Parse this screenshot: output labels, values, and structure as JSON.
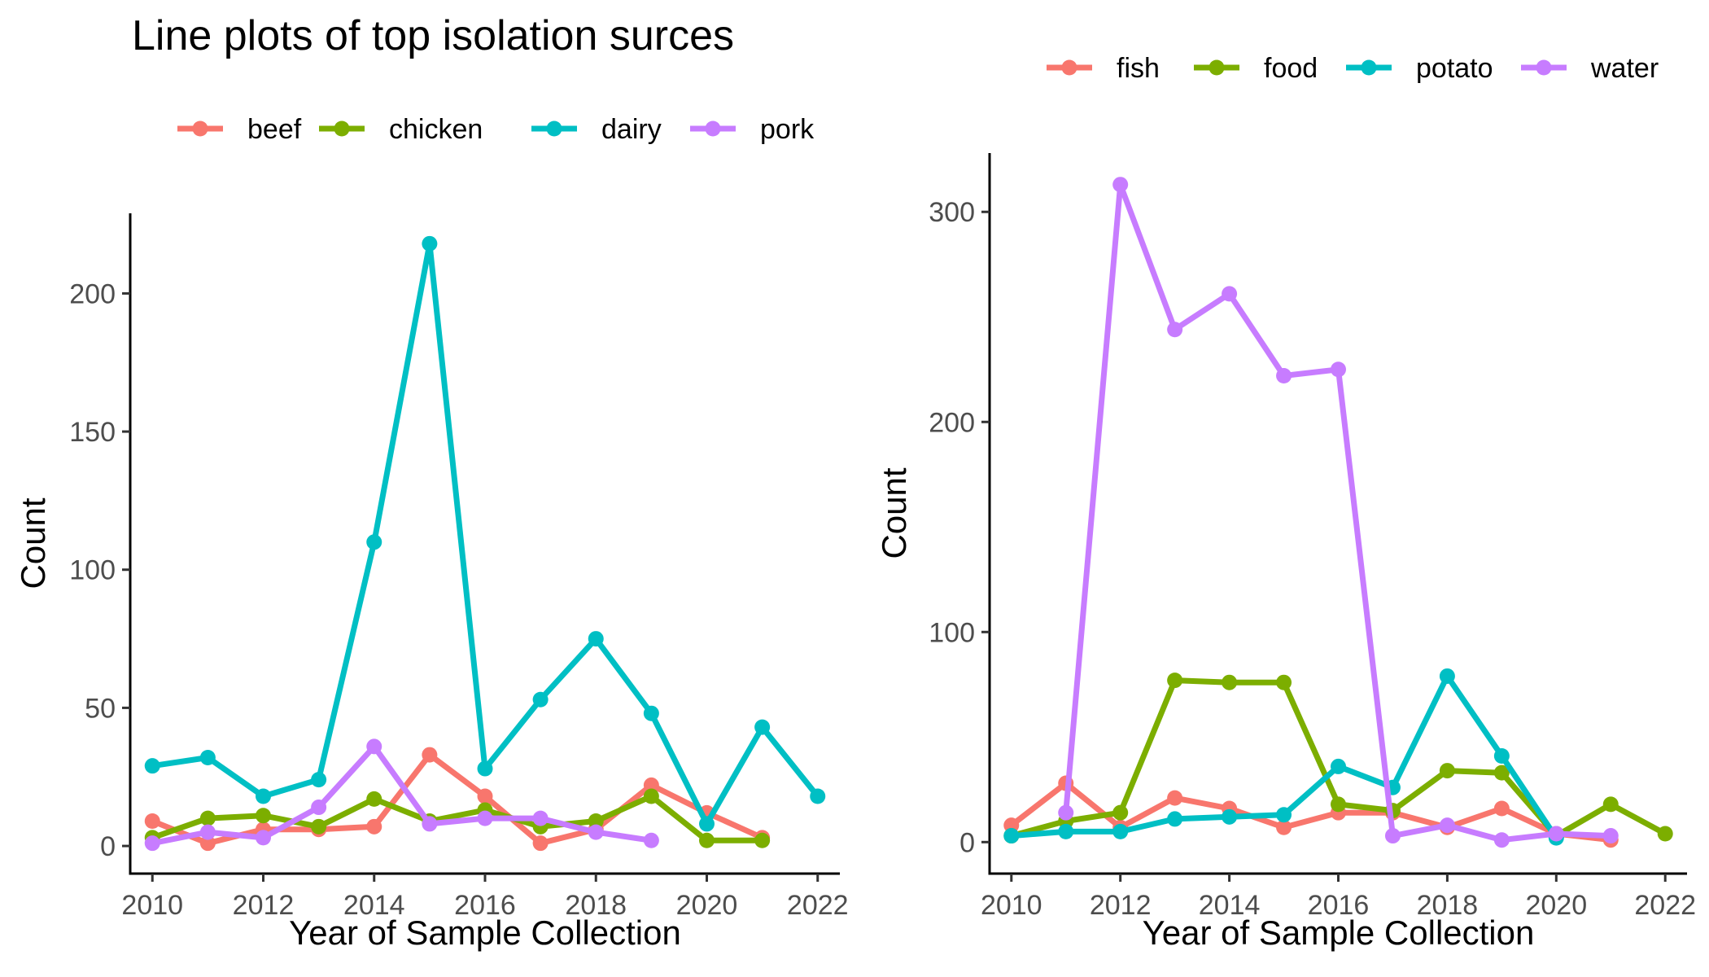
{
  "figure_title": "Line plots of top isolation surces",
  "colors": {
    "red": "#F8766D",
    "green": "#7CAE00",
    "cyan": "#00BFC4",
    "purple": "#C77CFF"
  },
  "chart_data": [
    {
      "type": "line",
      "title": "",
      "xlabel": "Year of Sample Collection",
      "ylabel": "Count",
      "xlim": [
        2009.6,
        2022.4
      ],
      "ylim": [
        -10,
        229
      ],
      "xticks": [
        2010,
        2012,
        2014,
        2016,
        2018,
        2020,
        2022
      ],
      "yticks": [
        0,
        50,
        100,
        150,
        200
      ],
      "grid": false,
      "legend_position": "top",
      "series": [
        {
          "name": "beef",
          "color": "#F8766D",
          "x": [
            2010,
            2011,
            2012,
            2013,
            2014,
            2015,
            2016,
            2017,
            2018,
            2019,
            2020,
            2021
          ],
          "y": [
            9,
            1,
            6,
            6,
            7,
            33,
            18,
            1,
            6,
            22,
            12,
            3
          ]
        },
        {
          "name": "chicken",
          "color": "#7CAE00",
          "x": [
            2010,
            2011,
            2012,
            2013,
            2014,
            2015,
            2016,
            2017,
            2018,
            2019,
            2020,
            2021
          ],
          "y": [
            3,
            10,
            11,
            7,
            17,
            9,
            13,
            7,
            9,
            18,
            2,
            2
          ]
        },
        {
          "name": "dairy",
          "color": "#00BFC4",
          "x": [
            2010,
            2011,
            2012,
            2013,
            2014,
            2015,
            2016,
            2017,
            2018,
            2019,
            2020,
            2021,
            2022
          ],
          "y": [
            29,
            32,
            18,
            24,
            110,
            218,
            28,
            53,
            75,
            48,
            8,
            43,
            18
          ]
        },
        {
          "name": "pork",
          "color": "#C77CFF",
          "x": [
            2010,
            2011,
            2012,
            2013,
            2014,
            2015,
            2016,
            2017,
            2018,
            2019
          ],
          "y": [
            1,
            5,
            3,
            14,
            36,
            8,
            10,
            10,
            5,
            2
          ]
        }
      ]
    },
    {
      "type": "line",
      "title": "",
      "xlabel": "Year of Sample Collection",
      "ylabel": "Count",
      "xlim": [
        2009.6,
        2022.4
      ],
      "ylim": [
        -15,
        328
      ],
      "xticks": [
        2010,
        2012,
        2014,
        2016,
        2018,
        2020,
        2022
      ],
      "yticks": [
        0,
        100,
        200,
        300
      ],
      "grid": false,
      "legend_position": "top",
      "series": [
        {
          "name": "fish",
          "color": "#F8766D",
          "x": [
            2010,
            2011,
            2012,
            2013,
            2014,
            2015,
            2016,
            2017,
            2018,
            2019,
            2020,
            2021
          ],
          "y": [
            8,
            28,
            7,
            21,
            16,
            7,
            14,
            14,
            7,
            16,
            4,
            1
          ]
        },
        {
          "name": "food",
          "color": "#7CAE00",
          "x": [
            2010,
            2011,
            2012,
            2013,
            2014,
            2015,
            2016,
            2017,
            2018,
            2019,
            2020,
            2021,
            2022
          ],
          "y": [
            3,
            10,
            14,
            77,
            76,
            76,
            18,
            15,
            34,
            33,
            3,
            18,
            4
          ]
        },
        {
          "name": "potato",
          "color": "#00BFC4",
          "x": [
            2010,
            2011,
            2012,
            2013,
            2014,
            2015,
            2016,
            2017,
            2018,
            2019,
            2020
          ],
          "y": [
            3,
            5,
            5,
            11,
            12,
            13,
            36,
            26,
            79,
            41,
            2
          ]
        },
        {
          "name": "water",
          "color": "#C77CFF",
          "x": [
            2011,
            2012,
            2013,
            2014,
            2015,
            2016,
            2017,
            2018,
            2019,
            2020,
            2021
          ],
          "y": [
            14,
            313,
            244,
            261,
            222,
            225,
            3,
            8,
            1,
            4,
            3
          ]
        }
      ]
    }
  ]
}
